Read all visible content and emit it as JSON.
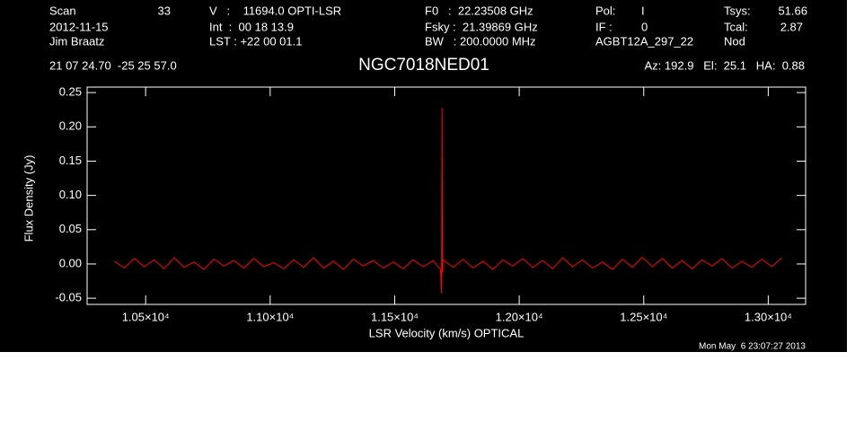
{
  "chart_data": {
    "type": "line",
    "title": "NGC7018NED01",
    "xlabel": "LSR Velocity (km/s) OPTICAL",
    "ylabel": "Flux Density (Jy)",
    "annotations": [
      "Scan",
      "33",
      "2012-11-15",
      "Jim Braatz",
      "V   :    11694.0 OPTI-LSR",
      "Int  :  00 18 13.9",
      "LST : +22 00 01.1",
      "F0   :  22.23508 GHz",
      "Fsky :  21.39869 GHz",
      "BW   : 200.0000 MHz",
      "Pol:",
      "I",
      "IF :",
      "0",
      "AGBT12A_297_22",
      "Tsys:",
      "51.66",
      "Tcal:",
      "2.87",
      "Nod",
      "21 07 24.70  -25 25 57.0",
      "Az: 192.9   El:  25.1   HA:  0.88",
      "Mon May  6 23:07:27 2013"
    ],
    "x": [
      10374,
      10414,
      10454,
      10494,
      10534,
      10574,
      10614,
      10654,
      10694,
      10734,
      10774,
      10814,
      10854,
      10894,
      10934,
      10974,
      11014,
      11054,
      11094,
      11134,
      11174,
      11214,
      11254,
      11294,
      11334,
      11374,
      11414,
      11454,
      11494,
      11534,
      11574,
      11614,
      11654,
      11684,
      11688,
      11690,
      11692,
      11694,
      11734,
      11774,
      11814,
      11854,
      11894,
      11934,
      11974,
      12014,
      12054,
      12094,
      12134,
      12174,
      12214,
      12254,
      12294,
      12334,
      12374,
      12414,
      12454,
      12494,
      12534,
      12574,
      12614,
      12654,
      12694,
      12734,
      12774,
      12814,
      12854,
      12894,
      12934,
      12974,
      13014,
      13054
    ],
    "series": [
      {
        "color": "#ff0000",
        "values": [
          0.004,
          -0.006,
          0.008,
          -0.004,
          0.006,
          -0.007,
          0.009,
          -0.005,
          0.003,
          -0.008,
          0.007,
          -0.003,
          0.005,
          -0.006,
          0.008,
          -0.004,
          0.002,
          -0.007,
          0.006,
          -0.005,
          0.009,
          -0.006,
          0.004,
          -0.008,
          0.007,
          -0.003,
          0.005,
          -0.006,
          0.003,
          -0.007,
          0.006,
          -0.004,
          0.005,
          -0.008,
          -0.043,
          0.228,
          -0.012,
          0.006,
          -0.005,
          0.007,
          -0.006,
          0.004,
          -0.008,
          0.006,
          -0.003,
          0.008,
          -0.005,
          0.005,
          -0.007,
          0.009,
          -0.004,
          0.006,
          -0.006,
          0.003,
          -0.008,
          0.007,
          -0.005,
          0.01,
          -0.004,
          0.008,
          -0.006,
          0.005,
          -0.007,
          0.006,
          -0.003,
          0.008,
          -0.006,
          0.004,
          -0.005,
          0.007,
          -0.004,
          0.009
        ]
      }
    ],
    "xlim": [
      10265,
      13150
    ],
    "ylim": [
      -0.059,
      0.258
    ],
    "xticks": [
      {
        "value": 10500,
        "label": "1.05×10⁴"
      },
      {
        "value": 11000,
        "label": "1.10×10⁴"
      },
      {
        "value": 11500,
        "label": "1.15×10⁴"
      },
      {
        "value": 12000,
        "label": "1.20×10⁴"
      },
      {
        "value": 12500,
        "label": "1.25×10⁴"
      },
      {
        "value": 13000,
        "label": "1.30×10⁴"
      }
    ],
    "yticks": [
      -0.05,
      {
        "value": 0,
        "label": "0.00"
      },
      0.05,
      {
        "value": 0.1,
        "label": "0.10"
      },
      0.15,
      {
        "value": 0.2,
        "label": "0.20"
      },
      0.25
    ]
  }
}
